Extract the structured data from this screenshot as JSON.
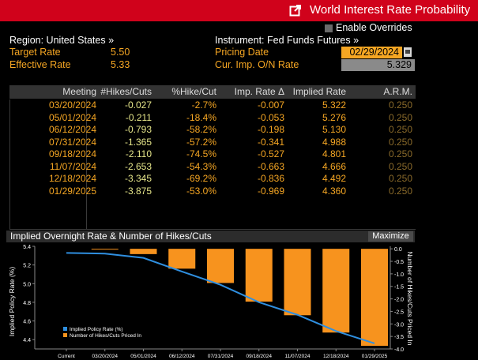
{
  "header": {
    "title": "World Interest Rate Probability"
  },
  "overrides_label": "Enable Overrides",
  "left_info": {
    "region_label": "Region: United States »",
    "target_label": "Target Rate",
    "target_value": "5.50",
    "effective_label": "Effective Rate",
    "effective_value": "5.33"
  },
  "right_info": {
    "instrument_label": "Instrument: Fed Funds Futures »",
    "pricing_label": "Pricing Date",
    "pricing_value": "02/29/2024",
    "onrate_label": "Cur. Imp. O/N Rate",
    "onrate_value": "5.329"
  },
  "table": {
    "headers": [
      "Meeting",
      "#Hikes/Cuts",
      "%Hike/Cut",
      "Imp. Rate Δ",
      "Implied Rate",
      "A.R.M."
    ],
    "rows": [
      [
        "03/20/2024",
        "-0.027",
        "-2.7%",
        "-0.007",
        "5.322",
        "0.250"
      ],
      [
        "05/01/2024",
        "-0.211",
        "-18.4%",
        "-0.053",
        "5.276",
        "0.250"
      ],
      [
        "06/12/2024",
        "-0.793",
        "-58.2%",
        "-0.198",
        "5.130",
        "0.250"
      ],
      [
        "07/31/2024",
        "-1.365",
        "-57.2%",
        "-0.341",
        "4.988",
        "0.250"
      ],
      [
        "09/18/2024",
        "-2.110",
        "-74.5%",
        "-0.527",
        "4.801",
        "0.250"
      ],
      [
        "11/07/2024",
        "-2.653",
        "-54.3%",
        "-0.663",
        "4.666",
        "0.250"
      ],
      [
        "12/18/2024",
        "-3.345",
        "-69.2%",
        "-0.836",
        "4.492",
        "0.250"
      ],
      [
        "01/29/2025",
        "-3.875",
        "-53.0%",
        "-0.969",
        "4.360",
        "0.250"
      ]
    ]
  },
  "chart_header": {
    "title": "Implied Overnight Rate & Number of Hikes/Cuts",
    "maximize_label": "Maximize"
  },
  "chart_data": {
    "type": "bar",
    "categories": [
      "Current",
      "03/20/2024",
      "05/01/2024",
      "06/12/2024",
      "07/31/2024",
      "09/18/2024",
      "11/07/2024",
      "12/18/2024",
      "01/29/2025"
    ],
    "series": [
      {
        "name": "Implied Policy Rate (%)",
        "type": "line",
        "axis": "left",
        "color": "#2f8fe0",
        "values": [
          5.329,
          5.322,
          5.276,
          5.13,
          4.988,
          4.801,
          4.666,
          4.492,
          4.36
        ]
      },
      {
        "name": "Number of Hikes/Cuts Priced In",
        "type": "bar",
        "axis": "right",
        "color": "#f7931e",
        "values": [
          0,
          -0.027,
          -0.211,
          -0.793,
          -1.365,
          -2.11,
          -2.653,
          -3.345,
          -3.875
        ]
      }
    ],
    "ylabel": "Implied Policy Rate (%)",
    "y2label": "Number of Hikes/Cuts Priced In",
    "ylim": [
      4.3,
      5.4
    ],
    "y2lim": [
      -4.0,
      0.1
    ],
    "yticks": [
      "5.4",
      "5.2",
      "5.0",
      "4.8",
      "4.6",
      "4.4"
    ],
    "y2ticks": [
      "0.0",
      "-0.5",
      "-1.0",
      "-1.5",
      "-2.0",
      "-2.5",
      "-3.0",
      "-3.5",
      "-4.0"
    ],
    "legend_position": "bottom-left",
    "grid": false
  }
}
